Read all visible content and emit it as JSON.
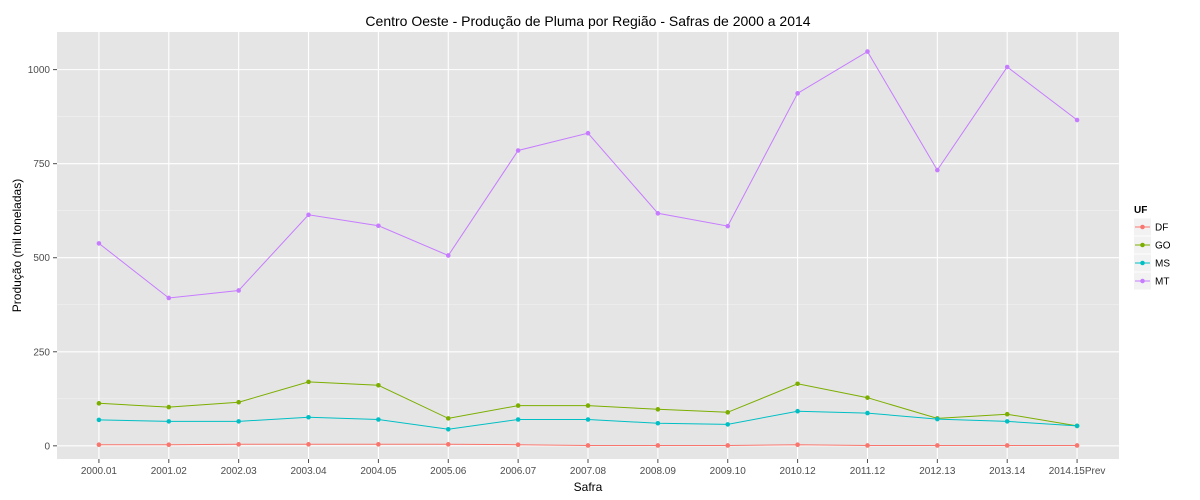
{
  "chart_data": {
    "type": "line",
    "title": "Centro Oeste  - Produção de Pluma por Região - Safras de 2000 a 2014",
    "xlabel": "Safra",
    "ylabel": "Produção (mil toneladas)",
    "categories": [
      "2000.01",
      "2001.02",
      "2002.03",
      "2003.04",
      "2004.05",
      "2005.06",
      "2006.07",
      "2007.08",
      "2008.09",
      "2009.10",
      "2010.12",
      "2011.12",
      "2012.13",
      "2013.14",
      "2014.15Prev"
    ],
    "ylim": [
      -35,
      1100
    ],
    "yticks": [
      0,
      250,
      500,
      750,
      1000
    ],
    "grid": true,
    "legend_title": "UF",
    "legend_position": "right",
    "series": [
      {
        "name": "DF",
        "color": "#F8766D",
        "values": [
          3,
          3,
          4,
          4,
          4,
          4,
          3,
          1,
          1,
          1,
          3,
          1,
          1,
          1,
          1
        ]
      },
      {
        "name": "GO",
        "color": "#7CAE00",
        "values": [
          113,
          103,
          116,
          170,
          161,
          73,
          107,
          107,
          97,
          89,
          165,
          128,
          73,
          84,
          53
        ]
      },
      {
        "name": "MS",
        "color": "#00BFC4",
        "values": [
          69,
          65,
          65,
          76,
          70,
          44,
          70,
          70,
          60,
          57,
          92,
          87,
          71,
          65,
          53
        ]
      },
      {
        "name": "MT",
        "color": "#C77CFF",
        "values": [
          538,
          393,
          413,
          614,
          585,
          506,
          785,
          831,
          618,
          584,
          937,
          1048,
          733,
          1007,
          866
        ]
      }
    ]
  }
}
